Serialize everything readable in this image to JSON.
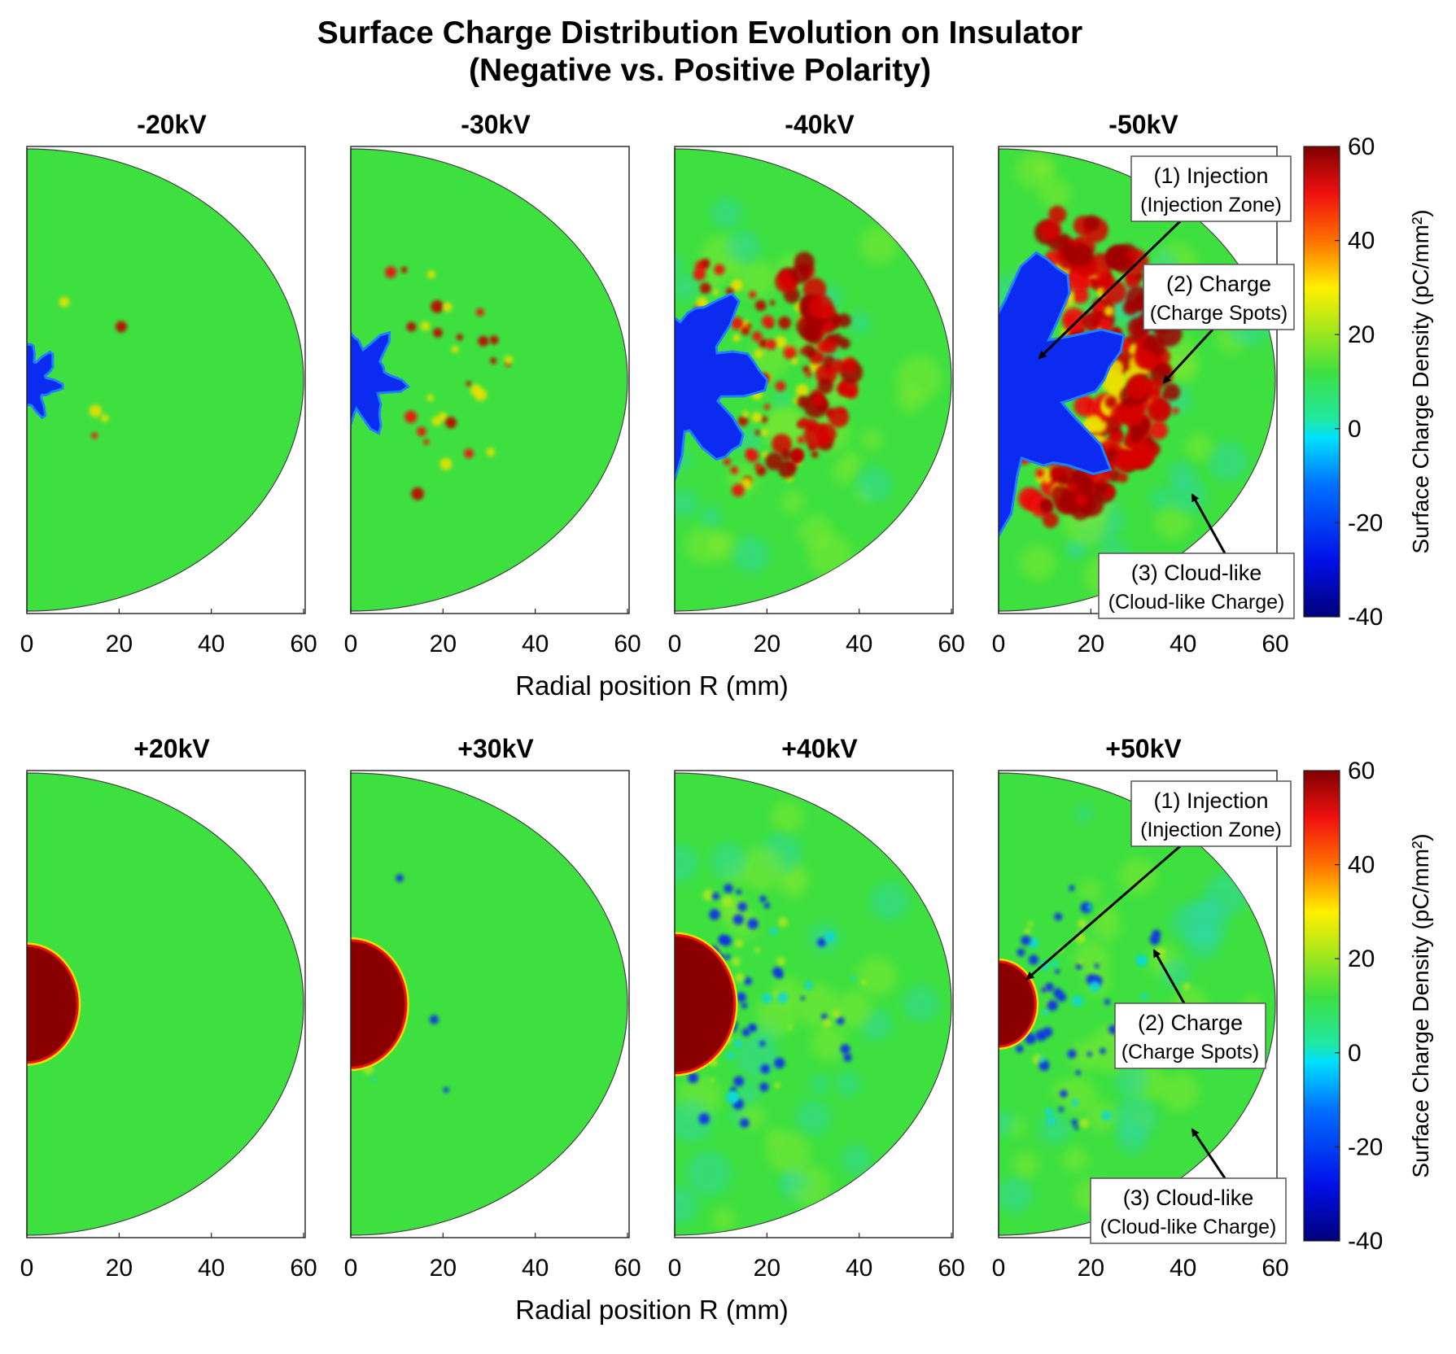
{
  "title_line1": "Surface Charge Distribution Evolution on Insulator",
  "title_line2": "(Negative vs. Positive Polarity)",
  "colors": {
    "background_green": "#3ee040",
    "negative_blue": "#0b2bf0",
    "positive_darkred": "#8a0000",
    "red": "#f01010",
    "yellow": "#e8e000",
    "cyan": "#10d8d8"
  },
  "chart_data": {
    "type": "heatmap",
    "xlabel": "Radial position R (mm)",
    "xlim": [
      0,
      60
    ],
    "x_ticks": [
      "0",
      "20",
      "40",
      "60"
    ],
    "colorbar": {
      "label": "Surface Charge Density (pC/mm²)",
      "range": [
        -40,
        60
      ],
      "ticks": [
        "60",
        "40",
        "20",
        "0",
        "-20",
        "-40"
      ]
    },
    "panels": [
      {
        "title": "-20kV",
        "polarity": "negative",
        "voltage_kV": -20,
        "central_spot_radius_mm": 6,
        "spot_count": 5,
        "spread": 0.2
      },
      {
        "title": "-30kV",
        "polarity": "negative",
        "voltage_kV": -30,
        "central_spot_radius_mm": 9,
        "spot_count": 30,
        "spread": 0.35
      },
      {
        "title": "-40kV",
        "polarity": "negative",
        "voltage_kV": -40,
        "central_spot_radius_mm": 16,
        "spot_count": 90,
        "spread": 0.55
      },
      {
        "title": "-50kV",
        "polarity": "negative",
        "voltage_kV": -50,
        "central_spot_radius_mm": 22,
        "spot_count": 160,
        "spread": 0.8
      },
      {
        "title": "+20kV",
        "polarity": "positive",
        "voltage_kV": 20,
        "central_spot_radius_mm": 11,
        "spot_count": 0,
        "spread": 0.05
      },
      {
        "title": "+30kV",
        "polarity": "positive",
        "voltage_kV": 30,
        "central_spot_radius_mm": 12,
        "spot_count": 8,
        "spread": 0.15
      },
      {
        "title": "+40kV",
        "polarity": "positive",
        "voltage_kV": 40,
        "central_spot_radius_mm": 13,
        "spot_count": 90,
        "spread": 0.6
      },
      {
        "title": "+50kV",
        "polarity": "positive",
        "voltage_kV": 50,
        "central_spot_radius_mm": 8,
        "spot_count": 70,
        "spread": 0.5
      }
    ],
    "annotations": [
      {
        "line1": "(1) Injection",
        "line2": "(Injection Zone)"
      },
      {
        "line1": "(2) Charge",
        "line2": "(Charge Spots)"
      },
      {
        "line1": "(3) Cloud-like",
        "line2": "(Cloud-like Charge)"
      }
    ]
  }
}
